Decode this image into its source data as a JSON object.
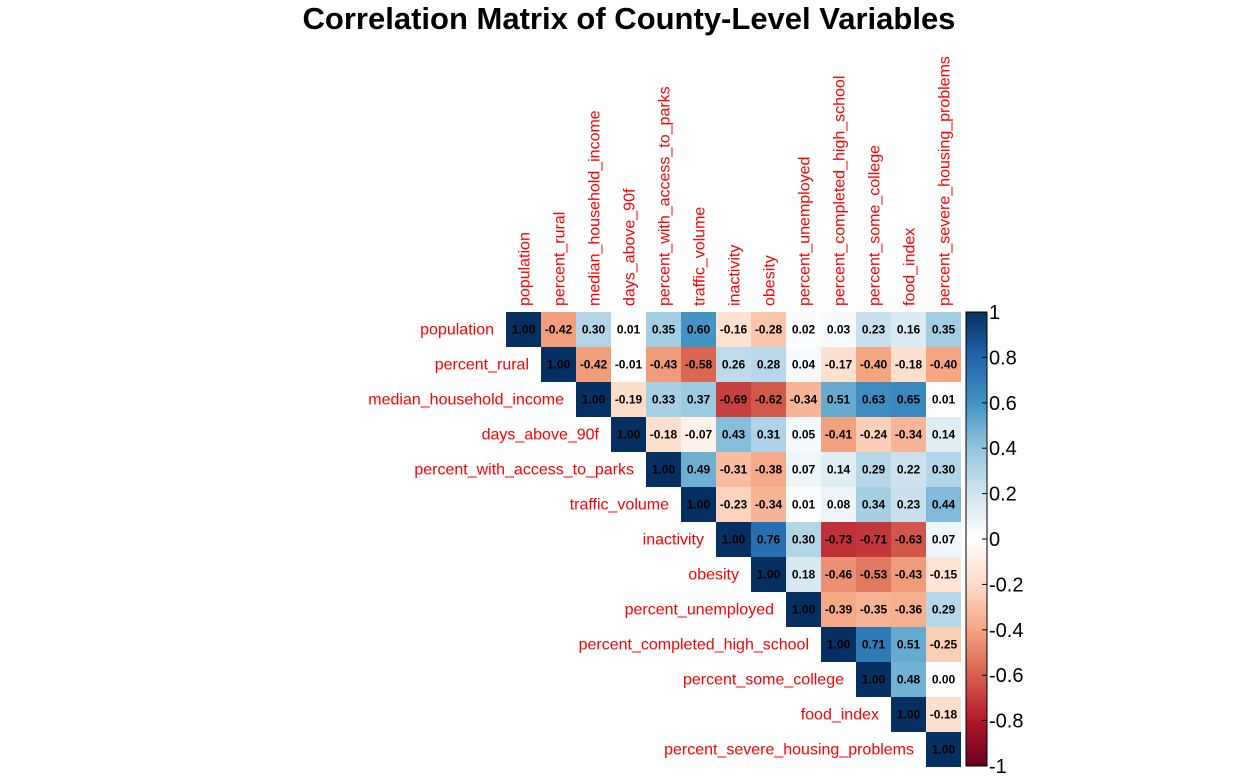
{
  "chart_data": {
    "type": "heatmap",
    "title": "Correlation Matrix of County-Level Variables",
    "layout": "upper-triangle",
    "variables": [
      "population",
      "percent_rural",
      "median_household_income",
      "days_above_90f",
      "percent_with_access_to_parks",
      "traffic_volume",
      "inactivity",
      "obesity",
      "percent_unemployed",
      "percent_completed_high_school",
      "percent_some_college",
      "food_index",
      "percent_severe_housing_problems"
    ],
    "matrix": [
      [
        1.0,
        -0.42,
        0.3,
        0.01,
        0.35,
        0.6,
        -0.16,
        -0.28,
        0.02,
        0.03,
        0.23,
        0.16,
        0.35
      ],
      [
        null,
        1.0,
        -0.42,
        -0.01,
        -0.43,
        -0.58,
        0.26,
        0.28,
        0.04,
        -0.17,
        -0.4,
        -0.18,
        -0.4
      ],
      [
        null,
        null,
        1.0,
        -0.19,
        0.33,
        0.37,
        -0.69,
        -0.62,
        -0.34,
        0.51,
        0.63,
        0.65,
        0.01
      ],
      [
        null,
        null,
        null,
        1.0,
        -0.18,
        -0.07,
        0.43,
        0.31,
        0.05,
        -0.41,
        -0.24,
        -0.34,
        0.14
      ],
      [
        null,
        null,
        null,
        null,
        1.0,
        0.49,
        -0.31,
        -0.38,
        0.07,
        0.14,
        0.29,
        0.22,
        0.3
      ],
      [
        null,
        null,
        null,
        null,
        null,
        1.0,
        -0.23,
        -0.34,
        0.01,
        0.08,
        0.34,
        0.23,
        0.44
      ],
      [
        null,
        null,
        null,
        null,
        null,
        null,
        1.0,
        0.76,
        0.3,
        -0.73,
        -0.71,
        -0.63,
        0.07
      ],
      [
        null,
        null,
        null,
        null,
        null,
        null,
        null,
        1.0,
        0.18,
        -0.46,
        -0.53,
        -0.43,
        -0.15
      ],
      [
        null,
        null,
        null,
        null,
        null,
        null,
        null,
        null,
        1.0,
        -0.39,
        -0.35,
        -0.36,
        0.29
      ],
      [
        null,
        null,
        null,
        null,
        null,
        null,
        null,
        null,
        null,
        1.0,
        0.71,
        0.51,
        -0.25
      ],
      [
        null,
        null,
        null,
        null,
        null,
        null,
        null,
        null,
        null,
        null,
        1.0,
        0.48,
        0.0
      ],
      [
        null,
        null,
        null,
        null,
        null,
        null,
        null,
        null,
        null,
        null,
        null,
        1.0,
        -0.18
      ],
      [
        null,
        null,
        null,
        null,
        null,
        null,
        null,
        null,
        null,
        null,
        null,
        null,
        1.0
      ]
    ],
    "colorbar": {
      "range": [
        -1,
        1
      ],
      "ticks": [
        1,
        0.8,
        0.6,
        0.4,
        0.2,
        0,
        -0.2,
        -0.4,
        -0.6,
        -0.8,
        -1
      ],
      "tick_labels": [
        "1",
        "0.8",
        "0.6",
        "0.4",
        "0.2",
        "0",
        "-0.2",
        "-0.4",
        "-0.6",
        "-0.8",
        "-1"
      ]
    },
    "colors": {
      "label_color": "#ff0000",
      "palette": [
        "#67001f",
        "#b2182b",
        "#d6604d",
        "#f4a582",
        "#fddbc7",
        "#ffffff",
        "#d1e5f0",
        "#92c5de",
        "#4393c3",
        "#2166ac",
        "#053061"
      ]
    }
  }
}
